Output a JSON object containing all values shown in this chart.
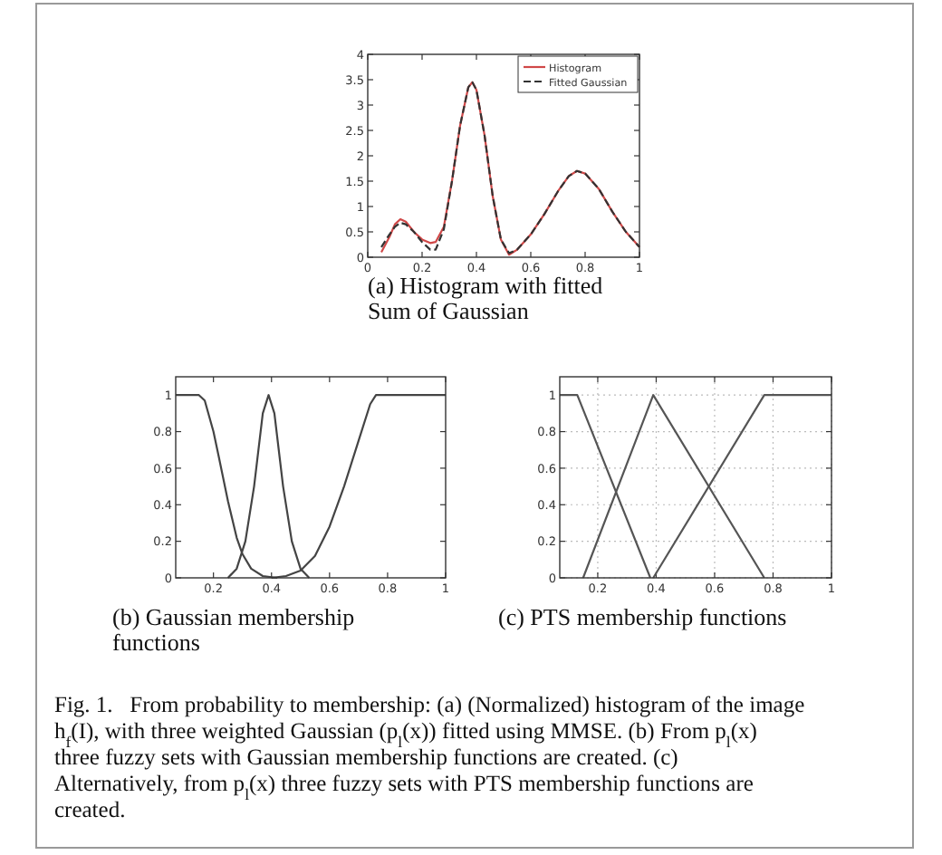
{
  "chart_data": [
    {
      "type": "line",
      "title": "(a) Histogram with fitted Sum of Gaussian",
      "xlim": [
        0,
        1
      ],
      "xticks": [
        0,
        0.2,
        0.4,
        0.6,
        0.8,
        1
      ],
      "ylim": [
        0,
        4
      ],
      "yticks": [
        0,
        0.5,
        1,
        1.5,
        2,
        2.5,
        3,
        3.5,
        4
      ],
      "grid": false,
      "legend": "top right",
      "series": [
        {
          "name": "Histogram",
          "color": "#d04848",
          "line_style": "solid",
          "x": [
            0.05,
            0.08,
            0.1,
            0.12,
            0.14,
            0.17,
            0.2,
            0.23,
            0.25,
            0.28,
            0.31,
            0.34,
            0.37,
            0.385,
            0.4,
            0.43,
            0.46,
            0.49,
            0.52,
            0.55,
            0.6,
            0.65,
            0.7,
            0.74,
            0.77,
            0.8,
            0.85,
            0.9,
            0.95,
            1
          ],
          "values": [
            0.1,
            0.4,
            0.65,
            0.75,
            0.7,
            0.5,
            0.35,
            0.28,
            0.3,
            0.6,
            1.5,
            2.6,
            3.35,
            3.45,
            3.3,
            2.4,
            1.2,
            0.35,
            0.05,
            0.15,
            0.45,
            0.85,
            1.3,
            1.6,
            1.7,
            1.65,
            1.35,
            0.9,
            0.5,
            0.2
          ]
        },
        {
          "name": "Fitted Gaussian",
          "color": "#333333",
          "line_style": "dashed",
          "x": [
            0.05,
            0.08,
            0.1,
            0.12,
            0.14,
            0.17,
            0.2,
            0.23,
            0.25,
            0.28,
            0.31,
            0.34,
            0.37,
            0.385,
            0.4,
            0.43,
            0.46,
            0.49,
            0.52,
            0.55,
            0.6,
            0.65,
            0.7,
            0.74,
            0.77,
            0.8,
            0.85,
            0.9,
            0.95,
            1
          ],
          "values": [
            0.2,
            0.45,
            0.6,
            0.68,
            0.65,
            0.5,
            0.3,
            0.15,
            0.15,
            0.55,
            1.5,
            2.6,
            3.35,
            3.45,
            3.3,
            2.4,
            1.2,
            0.35,
            0.08,
            0.15,
            0.45,
            0.85,
            1.3,
            1.6,
            1.7,
            1.65,
            1.35,
            0.9,
            0.5,
            0.2
          ]
        }
      ]
    },
    {
      "type": "line",
      "title": "(b) Gaussian membership functions",
      "xlim": [
        0.07,
        1
      ],
      "xticks": [
        0.2,
        0.4,
        0.6,
        0.8,
        1
      ],
      "ylim": [
        0,
        1.1
      ],
      "yticks": [
        0,
        0.2,
        0.4,
        0.6,
        0.8,
        1
      ],
      "grid": false,
      "series": [
        {
          "color": "#444444",
          "x": [
            0.07,
            0.15,
            0.17,
            0.2,
            0.22,
            0.25,
            0.28,
            0.3,
            0.33,
            0.37,
            0.42
          ],
          "values": [
            1,
            1,
            0.97,
            0.8,
            0.65,
            0.42,
            0.22,
            0.13,
            0.05,
            0.01,
            0
          ]
        },
        {
          "color": "#444444",
          "x": [
            0.25,
            0.28,
            0.31,
            0.34,
            0.37,
            0.39,
            0.41,
            0.44,
            0.47,
            0.5,
            0.53
          ],
          "values": [
            0,
            0.05,
            0.2,
            0.5,
            0.9,
            1,
            0.9,
            0.5,
            0.2,
            0.05,
            0
          ]
        },
        {
          "color": "#444444",
          "x": [
            0.4,
            0.45,
            0.5,
            0.55,
            0.6,
            0.65,
            0.7,
            0.74,
            0.76,
            1
          ],
          "values": [
            0,
            0.01,
            0.04,
            0.12,
            0.28,
            0.5,
            0.75,
            0.95,
            1,
            1
          ]
        }
      ]
    },
    {
      "type": "line",
      "title": "(c) PTS membership functions",
      "xlim": [
        0.07,
        1
      ],
      "xticks": [
        0.2,
        0.4,
        0.6,
        0.8,
        1
      ],
      "ylim": [
        0,
        1.1
      ],
      "yticks": [
        0,
        0.2,
        0.4,
        0.6,
        0.8,
        1
      ],
      "grid": true,
      "series": [
        {
          "color": "#555555",
          "x": [
            0.07,
            0.13,
            0.38
          ],
          "values": [
            1,
            1,
            0
          ]
        },
        {
          "color": "#555555",
          "x": [
            0.15,
            0.39,
            0.77
          ],
          "values": [
            0,
            1,
            0
          ]
        },
        {
          "color": "#555555",
          "x": [
            0.39,
            0.77,
            1
          ],
          "values": [
            0,
            1,
            1
          ]
        }
      ],
      "annotations": [
        "Fig. 1.   From probability to membership: (a) (Normalized) histogram of the image h$_{f}$(I), with three weighted Gaussian (p$_{l}$(x)) fitted using MMSE. (b) From p$_{l}$(x) three fuzzy sets with Gaussian membership functions are created. (c) Alternatively, from p$_{l}$(x) three fuzzy sets with PTS membership functions are created."
      ]
    }
  ]
}
